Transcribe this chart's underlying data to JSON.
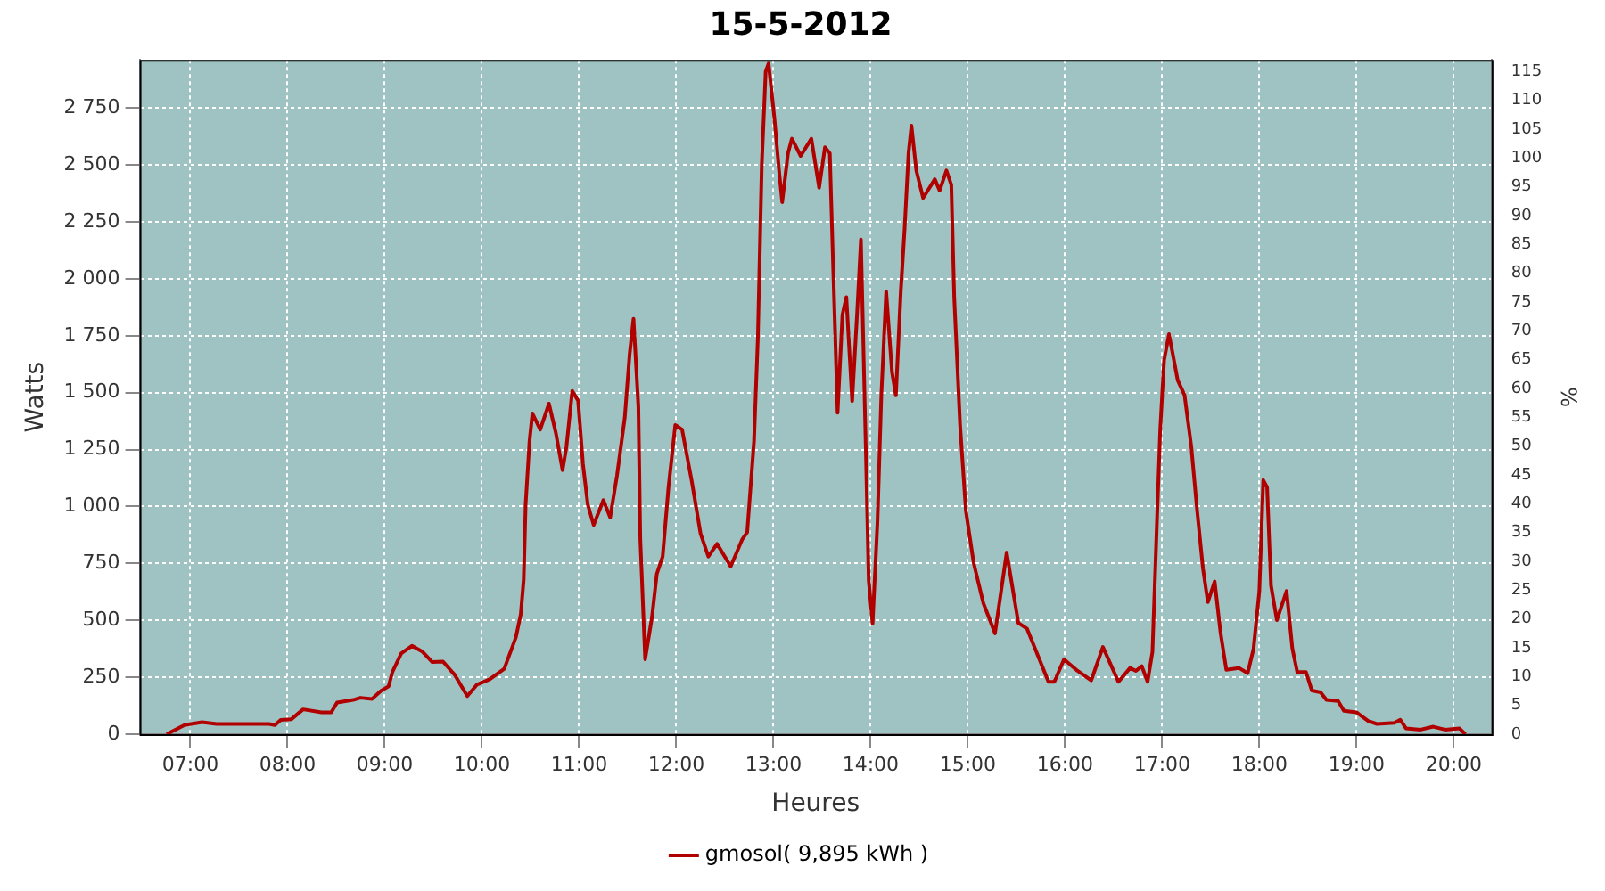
{
  "chart_data": {
    "type": "line",
    "title": "15-5-2012",
    "xlabel": "Heures",
    "ylabel": "Watts",
    "y2label": "%",
    "xlim": [
      6.478,
      20.39
    ],
    "xticks": [
      {
        "value": 7,
        "label": "07:00"
      },
      {
        "value": 8,
        "label": "08:00"
      },
      {
        "value": 9,
        "label": "09:00"
      },
      {
        "value": 10,
        "label": "10:00"
      },
      {
        "value": 11,
        "label": "11:00"
      },
      {
        "value": 12,
        "label": "12:00"
      },
      {
        "value": 13,
        "label": "13:00"
      },
      {
        "value": 14,
        "label": "14:00"
      },
      {
        "value": 15,
        "label": "15:00"
      },
      {
        "value": 16,
        "label": "16:00"
      },
      {
        "value": 17,
        "label": "17:00"
      },
      {
        "value": 18,
        "label": "18:00"
      },
      {
        "value": 19,
        "label": "19:00"
      },
      {
        "value": 20,
        "label": "20:00"
      }
    ],
    "ylim": [
      0,
      2962
    ],
    "yticks": [
      0,
      250,
      500,
      750,
      {
        "value": 1000,
        "label": "1 000"
      },
      {
        "value": 1250,
        "label": "1 250"
      },
      {
        "value": 1500,
        "label": "1 500"
      },
      {
        "value": 1750,
        "label": "1 750"
      },
      {
        "value": 2000,
        "label": "2 000"
      },
      {
        "value": 2250,
        "label": "2 250"
      },
      {
        "value": 2500,
        "label": "2 500"
      },
      {
        "value": 2750,
        "label": "2 750"
      }
    ],
    "y2lim": [
      0,
      117
    ],
    "y2ticks": [
      0,
      5,
      10,
      15,
      20,
      25,
      30,
      35,
      40,
      45,
      50,
      55,
      60,
      65,
      70,
      75,
      80,
      85,
      90,
      95,
      100,
      105,
      110,
      115
    ],
    "grid": true,
    "legend": "bottom",
    "marker": "none",
    "line_style": "solid",
    "series": [
      {
        "name": "gmosol( 9,895 kWh )",
        "color": "#b00000",
        "x": [
          6.756,
          6.94,
          7.12,
          7.27,
          7.81,
          7.87,
          7.93,
          8.04,
          8.16,
          8.35,
          8.45,
          8.51,
          8.69,
          8.75,
          8.87,
          8.96,
          9.04,
          9.08,
          9.17,
          9.28,
          9.39,
          9.49,
          9.6,
          9.72,
          9.85,
          9.95,
          10.08,
          10.23,
          10.35,
          10.4,
          10.43,
          10.45,
          10.49,
          10.52,
          10.6,
          10.69,
          10.76,
          10.83,
          10.87,
          10.93,
          10.99,
          11.04,
          11.09,
          11.15,
          11.25,
          11.32,
          11.39,
          11.47,
          11.52,
          11.56,
          11.61,
          11.63,
          11.68,
          11.75,
          11.8,
          11.86,
          11.92,
          11.99,
          12.06,
          12.16,
          12.25,
          12.33,
          12.42,
          12.56,
          12.68,
          12.73,
          12.8,
          12.84,
          12.88,
          12.92,
          12.95,
          13.01,
          13.06,
          13.09,
          13.15,
          13.19,
          13.28,
          13.39,
          13.47,
          13.53,
          13.58,
          13.62,
          13.66,
          13.71,
          13.75,
          13.81,
          13.86,
          13.9,
          13.95,
          13.98,
          14.02,
          14.07,
          14.11,
          14.16,
          14.22,
          14.26,
          14.31,
          14.35,
          14.39,
          14.42,
          14.47,
          14.54,
          14.66,
          14.71,
          14.78,
          14.83,
          14.86,
          14.92,
          14.98,
          15.06,
          15.16,
          15.28,
          15.4,
          15.52,
          15.61,
          15.83,
          15.89,
          15.99,
          16.13,
          16.27,
          16.39,
          16.55,
          16.67,
          16.73,
          16.79,
          16.85,
          16.9,
          16.95,
          16.98,
          17.02,
          17.07,
          17.11,
          17.16,
          17.23,
          17.3,
          17.36,
          17.42,
          17.47,
          17.54,
          17.6,
          17.66,
          17.79,
          17.88,
          17.94,
          18.0,
          18.04,
          18.08,
          18.12,
          18.18,
          18.28,
          18.34,
          18.39,
          18.48,
          18.54,
          18.63,
          18.69,
          18.81,
          18.87,
          19.0,
          19.12,
          19.21,
          19.39,
          19.45,
          19.51,
          19.66,
          19.79,
          19.91,
          20.06,
          20.12
        ],
        "values": [
          0,
          40,
          53,
          45,
          45,
          40,
          63,
          66,
          109,
          96,
          96,
          139,
          152,
          160,
          155,
          190,
          210,
          274,
          355,
          388,
          362,
          317,
          319,
          261,
          167,
          218,
          241,
          287,
          426,
          527,
          679,
          1008,
          1287,
          1409,
          1338,
          1452,
          1325,
          1160,
          1262,
          1508,
          1465,
          1186,
          1008,
          919,
          1028,
          952,
          1135,
          1389,
          1668,
          1825,
          1440,
          857,
          329,
          514,
          704,
          780,
          1084,
          1358,
          1338,
          1110,
          881,
          780,
          836,
          737,
          857,
          887,
          1287,
          1744,
          2505,
          2910,
          2946,
          2705,
          2464,
          2337,
          2552,
          2616,
          2540,
          2616,
          2400,
          2578,
          2552,
          1970,
          1412,
          1843,
          1920,
          1463,
          1843,
          2173,
          1260,
          676,
          486,
          930,
          1488,
          1945,
          1590,
          1488,
          1945,
          2224,
          2552,
          2673,
          2476,
          2355,
          2438,
          2388,
          2476,
          2413,
          1920,
          1361,
          981,
          753,
          575,
          443,
          798,
          489,
          463,
          230,
          230,
          329,
          278,
          236,
          383,
          230,
          291,
          278,
          299,
          230,
          362,
          981,
          1338,
          1643,
          1757,
          1668,
          1554,
          1490,
          1262,
          981,
          727,
          580,
          671,
          447,
          283,
          291,
          268,
          375,
          629,
          1116,
          1084,
          653,
          501,
          629,
          375,
          273,
          273,
          192,
          184,
          151,
          146,
          103,
          96,
          58,
          45,
          50,
          63,
          25,
          20,
          33,
          20,
          25,
          0
        ]
      }
    ]
  }
}
